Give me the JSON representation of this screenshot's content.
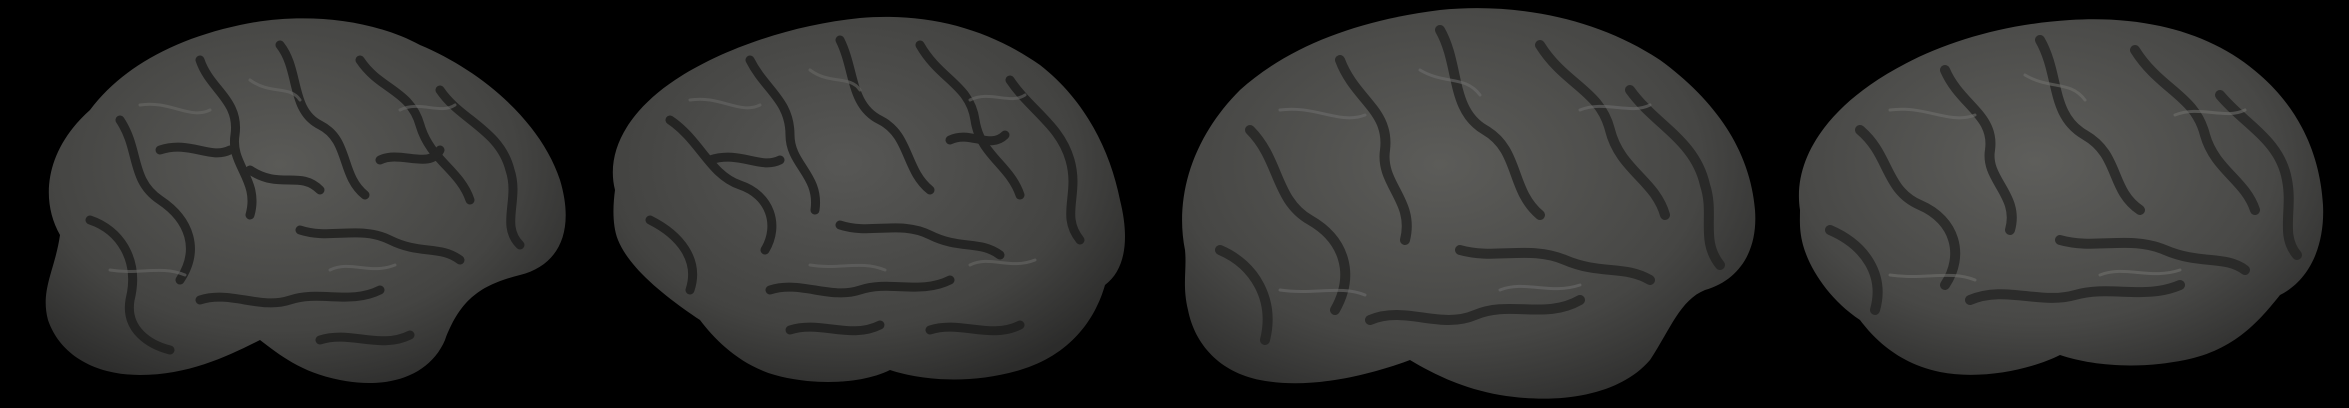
{
  "figure": {
    "background_color": "#000000",
    "surface_color": "#4a4a48",
    "sulcus_color": "#222221",
    "highlight_color": "#6a6a67"
  },
  "panels": [
    {
      "label": "",
      "view": "lateral",
      "hemisphere": "left",
      "folding": "high"
    },
    {
      "label": "",
      "view": "lateral",
      "hemisphere": "left",
      "folding": "high"
    },
    {
      "label": "",
      "view": "lateral",
      "hemisphere": "left",
      "folding": "medium"
    },
    {
      "label": "",
      "view": "lateral",
      "hemisphere": "left",
      "folding": "medium"
    }
  ]
}
